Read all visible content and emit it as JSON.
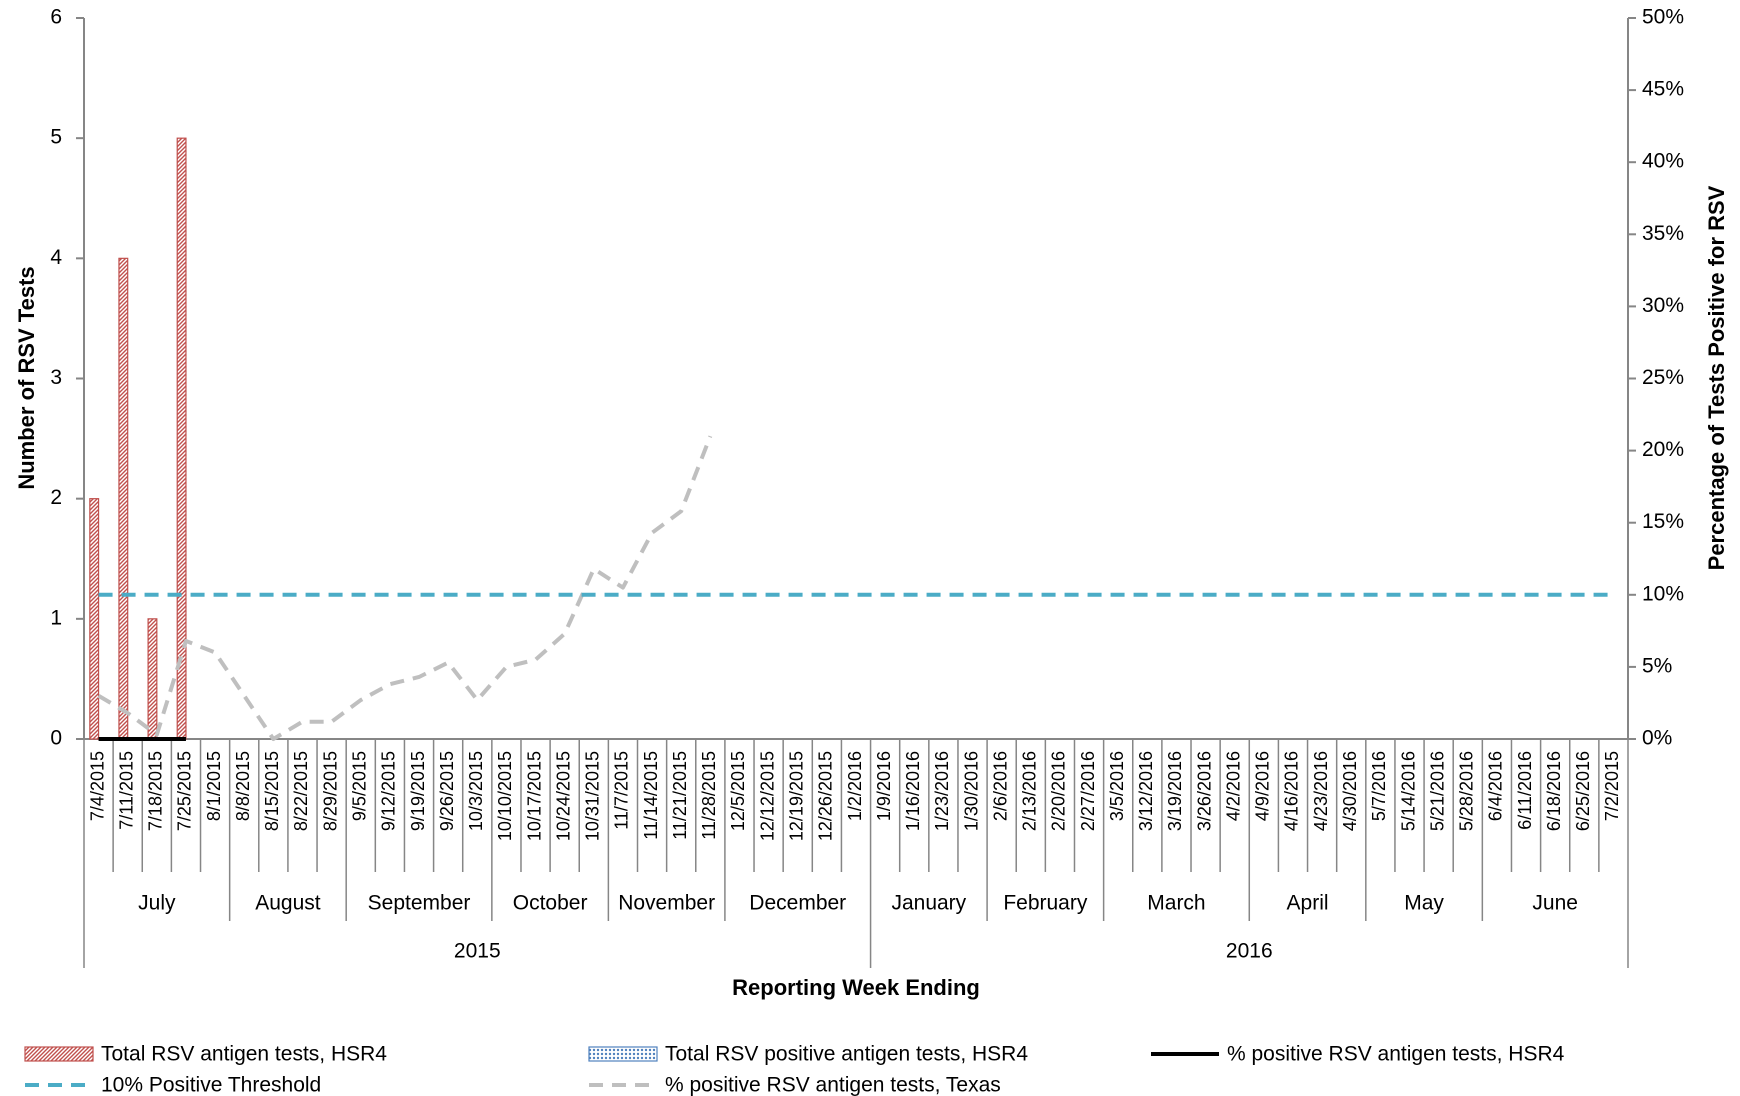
{
  "chart_data": {
    "type": "bar",
    "x_label": "Reporting Week Ending",
    "y_label": "Number of RSV Tests",
    "y2_label": "Percentage of Tests Positive for RSV",
    "categories": [
      "7/4/2015",
      "7/11/2015",
      "7/18/2015",
      "7/25/2015",
      "8/1/2015",
      "8/8/2015",
      "8/15/2015",
      "8/22/2015",
      "8/29/2015",
      "9/5/2015",
      "9/12/2015",
      "9/19/2015",
      "9/26/2015",
      "10/3/2015",
      "10/10/2015",
      "10/17/2015",
      "10/24/2015",
      "10/31/2015",
      "11/7/2015",
      "11/14/2015",
      "11/21/2015",
      "11/28/2015",
      "12/5/2015",
      "12/12/2015",
      "12/19/2015",
      "12/26/2015",
      "1/2/2016",
      "1/9/2016",
      "1/16/2016",
      "1/23/2016",
      "1/30/2016",
      "2/6/2016",
      "2/13/2016",
      "2/20/2016",
      "2/27/2016",
      "3/5/2016",
      "3/12/2016",
      "3/19/2016",
      "3/26/2016",
      "4/2/2016",
      "4/9/2016",
      "4/16/2016",
      "4/23/2016",
      "4/30/2016",
      "5/7/2016",
      "5/14/2016",
      "5/21/2016",
      "5/28/2016",
      "6/4/2016",
      "6/11/2016",
      "6/18/2016",
      "6/25/2016",
      "7/2/2015"
    ],
    "month_categories": [
      "July",
      null,
      null,
      null,
      null,
      "August",
      null,
      null,
      null,
      "September",
      null,
      null,
      null,
      null,
      "October",
      null,
      null,
      null,
      "November",
      null,
      null,
      null,
      "December",
      null,
      null,
      null,
      null,
      "January",
      null,
      null,
      null,
      "February",
      null,
      null,
      null,
      "March",
      null,
      null,
      null,
      null,
      "April",
      null,
      null,
      null,
      "May",
      null,
      null,
      null,
      "June",
      null,
      null,
      null,
      null
    ],
    "year_categories": [
      "2015",
      null,
      null,
      null,
      null,
      null,
      null,
      null,
      null,
      null,
      null,
      null,
      null,
      null,
      null,
      null,
      null,
      null,
      null,
      null,
      null,
      null,
      null,
      null,
      null,
      null,
      null,
      "2016",
      null,
      null,
      null,
      null,
      null,
      null,
      null,
      null,
      null,
      null,
      null,
      null,
      null,
      null,
      null,
      null,
      null,
      null,
      null,
      null,
      null,
      null,
      null,
      null,
      null
    ],
    "series": [
      {
        "name": "Total RSV antigen tests, HSR4",
        "type": "bar",
        "pattern": "hatch",
        "color": "#c0504d",
        "values": [
          2,
          4,
          1,
          5,
          null,
          null,
          null,
          null,
          null,
          null,
          null,
          null,
          null,
          null,
          null,
          null,
          null,
          null,
          null,
          null,
          null,
          null,
          null,
          null,
          null,
          null,
          null,
          null,
          null,
          null,
          null,
          null,
          null,
          null,
          null,
          null,
          null,
          null,
          null,
          null,
          null,
          null,
          null,
          null,
          null,
          null,
          null,
          null,
          null,
          null,
          null,
          null,
          null
        ]
      },
      {
        "name": "Total RSV positive antigen tests, HSR4",
        "type": "bar",
        "pattern": "dots",
        "color": "#4f81bd",
        "values": [
          0,
          0,
          0,
          0,
          null,
          null,
          null,
          null,
          null,
          null,
          null,
          null,
          null,
          null,
          null,
          null,
          null,
          null,
          null,
          null,
          null,
          null,
          null,
          null,
          null,
          null,
          null,
          null,
          null,
          null,
          null,
          null,
          null,
          null,
          null,
          null,
          null,
          null,
          null,
          null,
          null,
          null,
          null,
          null,
          null,
          null,
          null,
          null,
          null,
          null,
          null,
          null,
          null
        ]
      },
      {
        "name": "% positive RSV antigen tests, HSR4",
        "type": "line",
        "axis": "y2",
        "dash": "solid",
        "color": "#000000",
        "values": [
          0,
          0,
          0,
          0,
          null,
          null,
          null,
          null,
          null,
          null,
          null,
          null,
          null,
          null,
          null,
          null,
          null,
          null,
          null,
          null,
          null,
          null,
          null,
          null,
          null,
          null,
          null,
          null,
          null,
          null,
          null,
          null,
          null,
          null,
          null,
          null,
          null,
          null,
          null,
          null,
          null,
          null,
          null,
          null,
          null,
          null,
          null,
          null,
          null,
          null,
          null,
          null,
          null
        ]
      },
      {
        "name": "10% Positive Threshold",
        "type": "line",
        "axis": "y2",
        "dash": "dashed",
        "color": "#4bacc6",
        "values": [
          10,
          10,
          10,
          10,
          10,
          10,
          10,
          10,
          10,
          10,
          10,
          10,
          10,
          10,
          10,
          10,
          10,
          10,
          10,
          10,
          10,
          10,
          10,
          10,
          10,
          10,
          10,
          10,
          10,
          10,
          10,
          10,
          10,
          10,
          10,
          10,
          10,
          10,
          10,
          10,
          10,
          10,
          10,
          10,
          10,
          10,
          10,
          10,
          10,
          10,
          10,
          10,
          10
        ]
      },
      {
        "name": "% positive RSV antigen tests, Texas",
        "type": "line",
        "axis": "y2",
        "dash": "dashed",
        "color": "#bfbfbf",
        "values": [
          3.0,
          1.8,
          0.3,
          6.8,
          6.0,
          3.0,
          0.0,
          1.2,
          1.2,
          2.7,
          3.8,
          4.3,
          5.3,
          2.7,
          5.0,
          5.5,
          7.3,
          11.8,
          10.5,
          14.3,
          15.8,
          21.0,
          null,
          null,
          null,
          null,
          null,
          null,
          null,
          null,
          null,
          null,
          null,
          null,
          null,
          null,
          null,
          null,
          null,
          null,
          null,
          null,
          null,
          null,
          null,
          null,
          null,
          null,
          null,
          null,
          null,
          null,
          null
        ]
      }
    ],
    "ylim": [
      0,
      6
    ],
    "yticks": [
      0,
      1,
      2,
      3,
      4,
      5,
      6
    ],
    "y2lim": [
      0,
      50
    ],
    "y2ticks": [
      {
        "value": 0,
        "label": "0%"
      },
      {
        "value": 5,
        "label": "5%"
      },
      {
        "value": 10,
        "label": "10%"
      },
      {
        "value": 15,
        "label": "15%"
      },
      {
        "value": 20,
        "label": "20%"
      },
      {
        "value": 25,
        "label": "25%"
      },
      {
        "value": 30,
        "label": "30%"
      },
      {
        "value": 35,
        "label": "35%"
      },
      {
        "value": 40,
        "label": "40%"
      },
      {
        "value": 45,
        "label": "45%"
      },
      {
        "value": 50,
        "label": "50%"
      }
    ],
    "grid": false
  }
}
